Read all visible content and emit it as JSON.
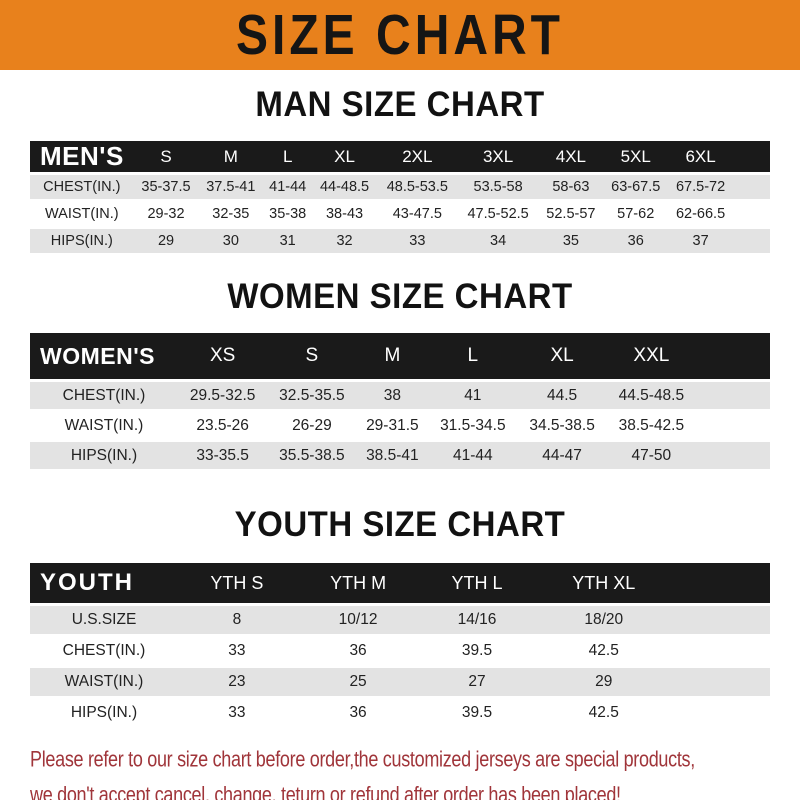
{
  "banner": {
    "title": "SIZE CHART"
  },
  "colors": {
    "banner_orange": "#E8811C",
    "header_black": "#1A1A1A",
    "row_gray": "#E3E3E3",
    "note_red": "#A0353A"
  },
  "sections": [
    {
      "heading": "MAN SIZE CHART",
      "table": {
        "corner_label": "MEN'S",
        "columns": [
          "S",
          "M",
          "L",
          "XL",
          "2XL",
          "3XL",
          "4XL",
          "5XL",
          "6XL"
        ],
        "rows": [
          {
            "label": "CHEST(IN.)",
            "values": [
              "35-37.5",
              "37.5-41",
              "41-44",
              "44-48.5",
              "48.5-53.5",
              "53.5-58",
              "58-63",
              "63-67.5",
              "67.5-72"
            ]
          },
          {
            "label": "WAIST(IN.)",
            "values": [
              "29-32",
              "32-35",
              "35-38",
              "38-43",
              "43-47.5",
              "47.5-52.5",
              "52.5-57",
              "57-62",
              "62-66.5"
            ]
          },
          {
            "label": "HIPS(IN.)",
            "values": [
              "29",
              "30",
              "31",
              "32",
              "33",
              "34",
              "35",
              "36",
              "37"
            ]
          }
        ]
      }
    },
    {
      "heading": "WOMEN SIZE CHART",
      "table": {
        "corner_label": "WOMEN'S",
        "columns": [
          "XS",
          "S",
          "M",
          "L",
          "XL",
          "XXL"
        ],
        "rows": [
          {
            "label": "CHEST(IN.)",
            "values": [
              "29.5-32.5",
              "32.5-35.5",
              "38",
              "41",
              "44.5",
              "44.5-48.5"
            ]
          },
          {
            "label": "WAIST(IN.)",
            "values": [
              "23.5-26",
              "26-29",
              "29-31.5",
              "31.5-34.5",
              "34.5-38.5",
              "38.5-42.5"
            ]
          },
          {
            "label": "HIPS(IN.)",
            "values": [
              "33-35.5",
              "35.5-38.5",
              "38.5-41",
              "41-44",
              "44-47",
              "47-50"
            ]
          }
        ]
      }
    },
    {
      "heading": "YOUTH SIZE CHART",
      "table": {
        "corner_label": "YOUTH",
        "columns": [
          "YTH S",
          "YTH M",
          "YTH L",
          "YTH XL"
        ],
        "rows": [
          {
            "label": "U.S.SIZE",
            "values": [
              "8",
              "10/12",
              "14/16",
              "18/20"
            ]
          },
          {
            "label": "CHEST(IN.)",
            "values": [
              "33",
              "36",
              "39.5",
              "42.5"
            ]
          },
          {
            "label": "WAIST(IN.)",
            "values": [
              "23",
              "25",
              "27",
              "29"
            ]
          },
          {
            "label": "HIPS(IN.)",
            "values": [
              "33",
              "36",
              "39.5",
              "42.5"
            ]
          }
        ]
      }
    }
  ],
  "footer": {
    "line1": "Please refer to our size chart before order,the customized jerseys are special products,",
    "line2": "we don't accept cancel, change, teturn or refund after order has been placed!"
  }
}
